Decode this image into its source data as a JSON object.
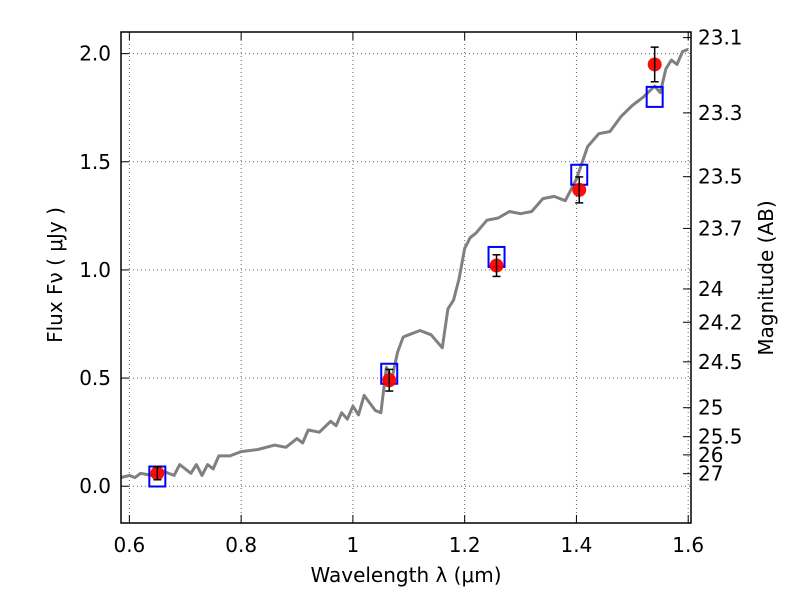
{
  "chart_data": {
    "type": "line",
    "xlabel": "Wavelength  λ (μm)",
    "ylabel": "Flux  Fν  ( μJy )",
    "y2label": "Magnitude (AB)",
    "xlim": [
      0.585,
      1.605
    ],
    "ylim": [
      -0.17,
      2.1
    ],
    "xticks": [
      {
        "value": 0.6,
        "label": "0.6"
      },
      {
        "value": 0.8,
        "label": "0.8"
      },
      {
        "value": 1.0,
        "label": "1"
      },
      {
        "value": 1.2,
        "label": "1.2"
      },
      {
        "value": 1.4,
        "label": "1.4"
      },
      {
        "value": 1.6,
        "label": "1.6"
      }
    ],
    "yticks": [
      {
        "value": 0.0,
        "label": "0.0"
      },
      {
        "value": 0.5,
        "label": "0.5"
      },
      {
        "value": 1.0,
        "label": "1.0"
      },
      {
        "value": 1.5,
        "label": "1.5"
      },
      {
        "value": 2.0,
        "label": "2.0"
      }
    ],
    "mag_ticks": [
      {
        "flux": 2.074,
        "label": "23.1"
      },
      {
        "flux": 1.726,
        "label": "23.3"
      },
      {
        "flux": 1.431,
        "label": "23.5"
      },
      {
        "flux": 1.192,
        "label": "23.7"
      },
      {
        "flux": 0.912,
        "label": "24"
      },
      {
        "flux": 0.758,
        "label": "24.2"
      },
      {
        "flux": 0.575,
        "label": "24.5"
      },
      {
        "flux": 0.363,
        "label": "25"
      },
      {
        "flux": 0.229,
        "label": "25.5"
      },
      {
        "flux": 0.145,
        "label": "26"
      },
      {
        "flux": 0.058,
        "label": "27"
      }
    ],
    "grid": true,
    "series": [
      {
        "kind": "line",
        "color": "#808080",
        "x": [
          0.585,
          0.6,
          0.61,
          0.62,
          0.64,
          0.66,
          0.68,
          0.69,
          0.7,
          0.71,
          0.72,
          0.73,
          0.74,
          0.75,
          0.76,
          0.78,
          0.8,
          0.83,
          0.86,
          0.88,
          0.9,
          0.91,
          0.92,
          0.94,
          0.96,
          0.97,
          0.98,
          0.99,
          1.0,
          1.01,
          1.02,
          1.04,
          1.05,
          1.06,
          1.07,
          1.08,
          1.09,
          1.1,
          1.12,
          1.14,
          1.16,
          1.17,
          1.18,
          1.19,
          1.2,
          1.21,
          1.22,
          1.23,
          1.24,
          1.26,
          1.28,
          1.3,
          1.32,
          1.34,
          1.36,
          1.38,
          1.4,
          1.42,
          1.44,
          1.46,
          1.48,
          1.5,
          1.52,
          1.54,
          1.55,
          1.56,
          1.57,
          1.58,
          1.59,
          1.6
        ],
        "y": [
          0.04,
          0.05,
          0.04,
          0.06,
          0.05,
          0.07,
          0.05,
          0.1,
          0.08,
          0.06,
          0.1,
          0.05,
          0.1,
          0.08,
          0.14,
          0.14,
          0.16,
          0.17,
          0.19,
          0.18,
          0.22,
          0.2,
          0.26,
          0.25,
          0.3,
          0.28,
          0.34,
          0.31,
          0.37,
          0.33,
          0.42,
          0.35,
          0.34,
          0.55,
          0.5,
          0.62,
          0.69,
          0.7,
          0.72,
          0.7,
          0.64,
          0.82,
          0.86,
          0.96,
          1.1,
          1.15,
          1.17,
          1.2,
          1.23,
          1.24,
          1.27,
          1.26,
          1.27,
          1.33,
          1.34,
          1.32,
          1.42,
          1.57,
          1.63,
          1.64,
          1.71,
          1.76,
          1.8,
          1.85,
          1.82,
          1.93,
          1.97,
          1.95,
          2.01,
          2.02
        ]
      },
      {
        "kind": "open-square",
        "color": "#0000ff",
        "x": [
          0.65,
          1.065,
          1.257,
          1.405,
          1.54
        ],
        "y": [
          0.045,
          0.52,
          1.06,
          1.44,
          1.8
        ]
      },
      {
        "kind": "filled-circle",
        "color": "#ff0000",
        "x": [
          0.65,
          1.065,
          1.257,
          1.405,
          1.54
        ],
        "y": [
          0.06,
          0.49,
          1.02,
          1.37,
          1.95
        ],
        "err": [
          0.03,
          0.05,
          0.05,
          0.06,
          0.08
        ]
      }
    ]
  }
}
